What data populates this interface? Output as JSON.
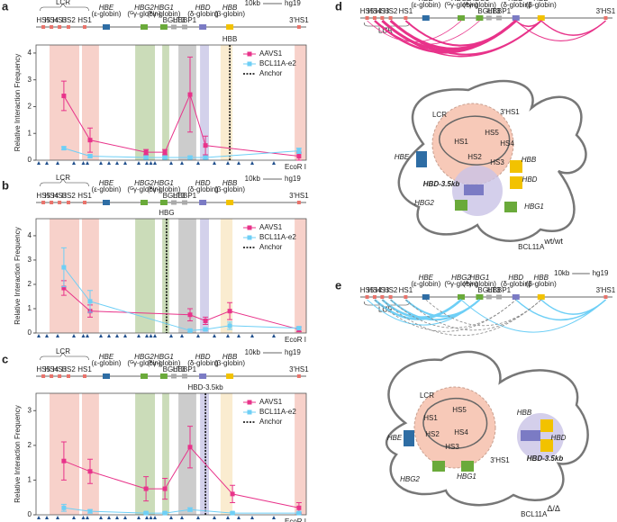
{
  "panel_labels": [
    "a",
    "b",
    "c",
    "d",
    "e"
  ],
  "track": {
    "lcr": "LCR",
    "hs": [
      "HS5",
      "HS4",
      "HS3",
      "HS2",
      "HS1"
    ],
    "genes": [
      {
        "name": "HBE",
        "sub": "(ε-globin)"
      },
      {
        "name": "HBG2",
        "sub": "(ᴳγ-globin)"
      },
      {
        "name": "HBG1",
        "sub": "(ᴬγ-globin)"
      },
      {
        "name": "HBD",
        "sub": "(δ-globin)"
      },
      {
        "name": "HBB",
        "sub": "(β-globin)"
      }
    ],
    "others": [
      "BGLT3",
      "HBBP1"
    ],
    "hs3p": "3'HS1",
    "scale": "10kb",
    "build": "hg19"
  },
  "chart_data": [
    {
      "type": "line",
      "title": "HBB",
      "ylabel": "Relative Interaction Frequency",
      "site_label": "EcoR I",
      "xlim": [
        0,
        100
      ],
      "ylim": [
        0,
        4.3
      ],
      "yticks": [
        0,
        1,
        2,
        3,
        4
      ],
      "anchor": {
        "name": "Anchor",
        "x": 71.7
      },
      "x": [
        10.3,
        20,
        40.7,
        47.7,
        57,
        62.7,
        97.3
      ],
      "series": [
        {
          "name": "AAVS1",
          "color": "#e8338a",
          "values": [
            2.4,
            0.75,
            0.3,
            0.3,
            2.45,
            0.55,
            0.15
          ],
          "errors": [
            0.55,
            0.45,
            0.1,
            0.1,
            1.4,
            0.35,
            0.15
          ]
        },
        {
          "name": "BCL11A-e2",
          "color": "#6ecff6",
          "values": [
            0.45,
            0.15,
            0.1,
            0.1,
            0.1,
            0.1,
            0.35
          ],
          "errors": [
            0.05,
            0.05,
            0.05,
            0.05,
            0.05,
            0.05,
            0.1
          ]
        }
      ]
    },
    {
      "type": "line",
      "title": "HBG",
      "ylabel": "Relative Interaction Frequency",
      "site_label": "EcoR I",
      "xlim": [
        0,
        100
      ],
      "ylim": [
        0,
        4.7
      ],
      "yticks": [
        0,
        1,
        2,
        3,
        4
      ],
      "anchor": {
        "name": "Anchor",
        "x": 48.3
      },
      "x": [
        10.3,
        20,
        57,
        62.7,
        71.7,
        97.3
      ],
      "series": [
        {
          "name": "AAVS1",
          "color": "#e8338a",
          "values": [
            1.85,
            0.9,
            0.75,
            0.5,
            0.9,
            0.15
          ],
          "errors": [
            0.3,
            0.25,
            0.25,
            0.15,
            0.35,
            0.1
          ]
        },
        {
          "name": "BCL11A-e2",
          "color": "#6ecff6",
          "values": [
            2.7,
            1.3,
            0.1,
            0.15,
            0.3,
            0.2
          ],
          "errors": [
            0.8,
            0.45,
            0.05,
            0.05,
            0.15,
            0.05
          ]
        }
      ]
    },
    {
      "type": "line",
      "title": "HBD-3.5kb",
      "ylabel": "Relative Interaction Frequency",
      "site_label": "EcoR I",
      "xlim": [
        0,
        100
      ],
      "ylim": [
        0,
        3.5
      ],
      "yticks": [
        0,
        1,
        2,
        3
      ],
      "anchor": {
        "name": "Anchor",
        "x": 62.7
      },
      "x": [
        10.3,
        20,
        40.7,
        47.7,
        57,
        72.7,
        97.3
      ],
      "series": [
        {
          "name": "AAVS1",
          "color": "#e8338a",
          "values": [
            1.55,
            1.25,
            0.75,
            0.75,
            1.95,
            0.6,
            0.2
          ],
          "errors": [
            0.55,
            0.35,
            0.35,
            0.3,
            0.6,
            0.25,
            0.15
          ]
        },
        {
          "name": "BCL11A-e2",
          "color": "#6ecff6",
          "values": [
            0.2,
            0.1,
            0.05,
            0.05,
            0.15,
            0.05,
            0.05
          ],
          "errors": [
            0.1,
            0.05,
            0.03,
            0.03,
            0.05,
            0.03,
            0.03
          ]
        }
      ]
    }
  ],
  "diagrams": [
    {
      "cell": "BCL11A",
      "genotype": "wt/wt",
      "labels": {
        "lcr": "LCR",
        "hs1": "HS1",
        "hs2": "HS2",
        "hs3": "HS3",
        "hs4": "HS4",
        "hs5": "HS5",
        "hs3p": "3'HS1",
        "hbe": "HBE",
        "hbb": "HBB",
        "hbd": "HBD",
        "hbd35": "HBD-3.5kb",
        "hbg2": "HBG2",
        "hbg1": "HBG1"
      }
    },
    {
      "cell": "BCL11A",
      "genotype": "Δ/Δ",
      "labels": {
        "lcr": "LCR",
        "hs1": "HS1",
        "hs2": "HS2",
        "hs3": "HS3",
        "hs4": "HS4",
        "hs5": "HS5",
        "hs3p": "3'HS1",
        "hbe": "HBE",
        "hbb": "HBB",
        "hbd": "HBD",
        "hbd35": "HBD-3.5kb",
        "hbg2": "HBG2",
        "hbg1": "HBG1"
      }
    }
  ]
}
